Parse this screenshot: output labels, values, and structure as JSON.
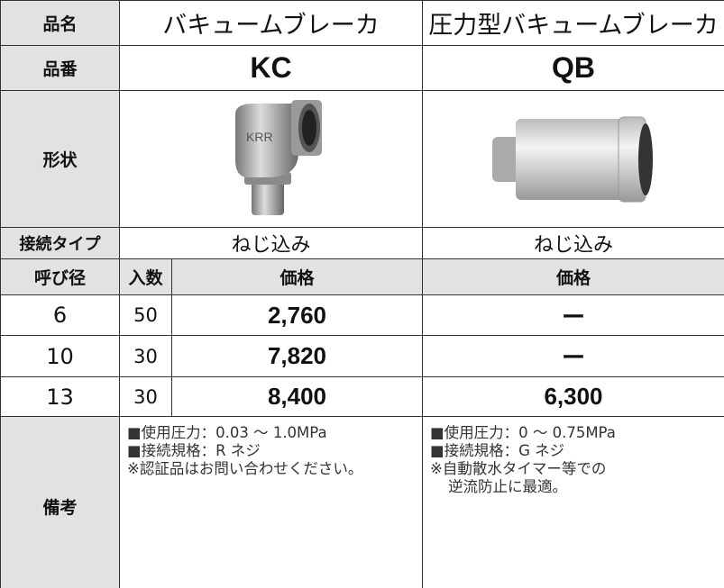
{
  "labels": {
    "name": "品名",
    "code": "品番",
    "shape": "形状",
    "connection": "接続タイプ",
    "size": "呼び径",
    "qty": "入数",
    "price_kc": "価格",
    "price_qb": "価格",
    "remarks": "備考"
  },
  "products": [
    {
      "name": "バキュームブレーカ",
      "code": "KC",
      "connection": "ねじ込み",
      "remarks": [
        "■使用圧力：0.03 ～ 1.0MPa",
        "■接続規格：R ネジ",
        "※認証品はお問い合わせください。"
      ]
    },
    {
      "name": "圧力型バキュームブレーカ",
      "code": "QB",
      "connection": "ねじ込み",
      "remarks": [
        "■使用圧力：0 ～ 0.75MPa",
        "■接続規格：G ネジ",
        "※自動散水タイマー等での",
        "逆流防止に最適。"
      ]
    }
  ],
  "sizes": [
    {
      "size": "6",
      "qty": "50",
      "kc_price": "2,760",
      "qb_price": "ー"
    },
    {
      "size": "10",
      "qty": "30",
      "kc_price": "7,820",
      "qb_price": "ー"
    },
    {
      "size": "13",
      "qty": "30",
      "kc_price": "8,400",
      "qb_price": "6,300"
    }
  ]
}
